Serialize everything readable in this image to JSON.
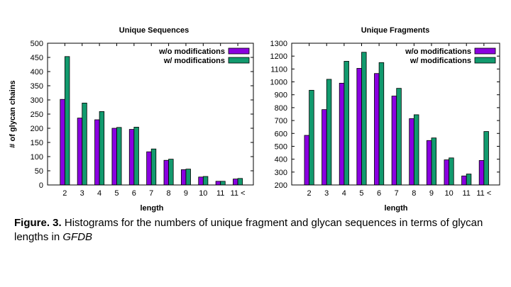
{
  "chart_data": [
    {
      "type": "bar",
      "title": "Unique Sequences",
      "xlabel": "length",
      "ylabel": "# of glycan chains",
      "categories": [
        "2",
        "3",
        "4",
        "5",
        "6",
        "7",
        "8",
        "9",
        "10",
        "11",
        "11 <"
      ],
      "ylim": [
        0,
        500
      ],
      "yticks": [
        0,
        50,
        100,
        150,
        200,
        250,
        300,
        350,
        400,
        450,
        500
      ],
      "legend_position": "top-right",
      "series": [
        {
          "name": "w/o modifications",
          "color": "#8a00e0",
          "values": [
            302,
            236,
            230,
            200,
            196,
            117,
            87,
            54,
            28,
            13,
            21
          ]
        },
        {
          "name": "w/ modifications",
          "color": "#129a6e",
          "values": [
            453,
            289,
            259,
            203,
            204,
            127,
            91,
            56,
            30,
            13,
            23
          ]
        }
      ]
    },
    {
      "type": "bar",
      "title": "Unique Fragments",
      "xlabel": "length",
      "ylabel": "",
      "categories": [
        "2",
        "3",
        "4",
        "5",
        "6",
        "7",
        "8",
        "9",
        "10",
        "11",
        "11 <"
      ],
      "ylim": [
        200,
        1300
      ],
      "yticks": [
        200,
        300,
        400,
        500,
        600,
        700,
        800,
        900,
        1000,
        1100,
        1200,
        1300
      ],
      "legend_position": "top-right",
      "series": [
        {
          "name": "w/o modifications",
          "color": "#8a00e0",
          "values": [
            585,
            785,
            990,
            1105,
            1065,
            890,
            715,
            545,
            395,
            270,
            390
          ]
        },
        {
          "name": "w/ modifications",
          "color": "#129a6e",
          "values": [
            935,
            1020,
            1160,
            1230,
            1150,
            950,
            745,
            565,
            410,
            285,
            615
          ]
        }
      ]
    }
  ],
  "caption": {
    "label": "Figure. 3.",
    "text": " Histograms for the numbers of unique fragment and glycan sequences in terms of glycan lengths in ",
    "italic": "GFDB"
  }
}
